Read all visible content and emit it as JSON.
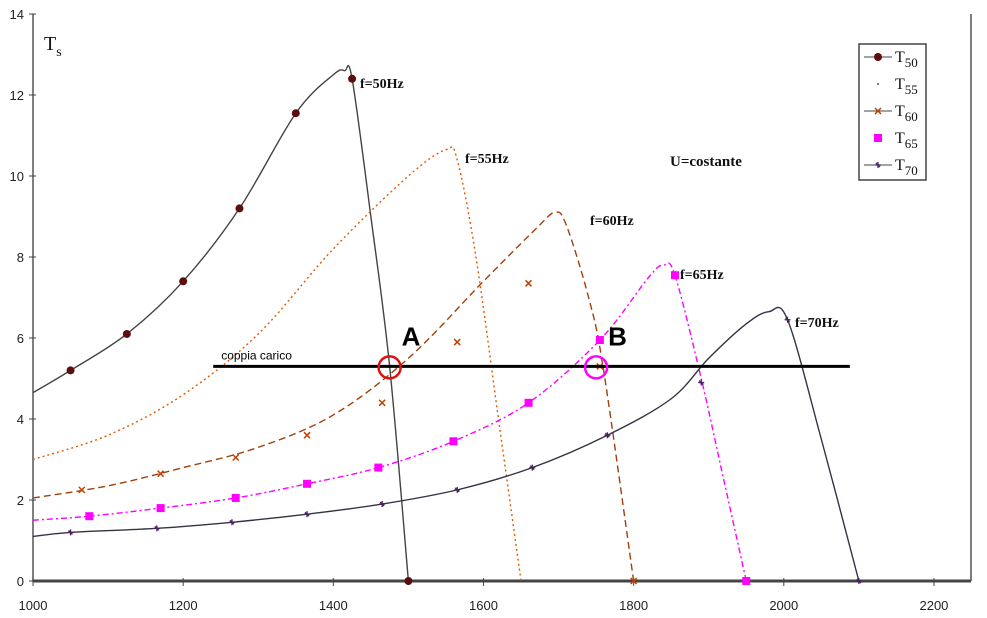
{
  "chart_data": {
    "type": "line",
    "ylabel": "T",
    "ylabel_sub": "s",
    "xlim": [
      1000,
      2200
    ],
    "ylim": [
      0,
      14
    ],
    "xticks": [
      1000,
      1200,
      1400,
      1600,
      1800,
      2000,
      2200
    ],
    "yticks": [
      0,
      2,
      4,
      6,
      8,
      10,
      12,
      14
    ],
    "legend_position": "top-right",
    "annotation": "U=costante",
    "series": [
      {
        "name": "T",
        "sub": "50",
        "label": "f=50Hz",
        "color": "#444444",
        "marker": "circle",
        "marker_color": "#5a0e0e",
        "dash": "",
        "points": [
          [
            1000,
            4.65
          ],
          [
            1050,
            5.2
          ],
          [
            1125,
            6.1
          ],
          [
            1200,
            7.4
          ],
          [
            1275,
            9.2
          ],
          [
            1350,
            11.55
          ],
          [
            1400,
            12.5
          ],
          [
            1415,
            12.6
          ],
          [
            1425,
            12.4
          ],
          [
            1450,
            9
          ],
          [
            1475,
            5.3
          ],
          [
            1500,
            0
          ]
        ],
        "markers": [
          [
            1050,
            5.2
          ],
          [
            1125,
            6.1
          ],
          [
            1200,
            7.4
          ],
          [
            1275,
            9.2
          ],
          [
            1350,
            11.55
          ],
          [
            1425,
            12.4
          ],
          [
            1500,
            0
          ]
        ]
      },
      {
        "name": "T",
        "sub": "55",
        "label": "f=55Hz",
        "color": "#e05a00",
        "marker": "dot",
        "marker_color": "#555555",
        "dash": "2,3",
        "points": [
          [
            1000,
            3.0
          ],
          [
            1100,
            3.6
          ],
          [
            1200,
            4.6
          ],
          [
            1300,
            6.1
          ],
          [
            1400,
            8.2
          ],
          [
            1500,
            10.0
          ],
          [
            1550,
            10.65
          ],
          [
            1565,
            10.4
          ],
          [
            1590,
            8
          ],
          [
            1620,
            4
          ],
          [
            1650,
            0
          ]
        ],
        "markers": []
      },
      {
        "name": "T",
        "sub": "60",
        "label": "f=60Hz",
        "color": "#a0400a",
        "marker": "cross",
        "marker_color": "#c04000",
        "dash": "7,4",
        "points": [
          [
            1000,
            2.05
          ],
          [
            1100,
            2.35
          ],
          [
            1200,
            2.8
          ],
          [
            1300,
            3.3
          ],
          [
            1400,
            4.1
          ],
          [
            1500,
            5.5
          ],
          [
            1600,
            7.4
          ],
          [
            1670,
            8.7
          ],
          [
            1695,
            9.1
          ],
          [
            1710,
            8.8
          ],
          [
            1740,
            7
          ],
          [
            1760,
            5.2
          ],
          [
            1800,
            0
          ]
        ],
        "markers": [
          [
            1065,
            2.25
          ],
          [
            1170,
            2.65
          ],
          [
            1270,
            3.05
          ],
          [
            1365,
            3.6
          ],
          [
            1465,
            4.4
          ],
          [
            1565,
            5.9
          ],
          [
            1660,
            7.35
          ],
          [
            1755,
            5.3
          ],
          [
            1800,
            0
          ]
        ]
      },
      {
        "name": "T",
        "sub": "65",
        "label": "f=65Hz",
        "color": "#ff00ff",
        "marker": "square",
        "marker_color": "#ff00ff",
        "dash": "6,3,2,3",
        "points": [
          [
            1000,
            1.5
          ],
          [
            1075,
            1.6
          ],
          [
            1170,
            1.8
          ],
          [
            1270,
            2.05
          ],
          [
            1365,
            2.4
          ],
          [
            1460,
            2.8
          ],
          [
            1560,
            3.45
          ],
          [
            1660,
            4.4
          ],
          [
            1755,
            5.95
          ],
          [
            1820,
            7.5
          ],
          [
            1840,
            7.8
          ],
          [
            1855,
            7.55
          ],
          [
            1890,
            5
          ],
          [
            1920,
            2.5
          ],
          [
            1950,
            0
          ]
        ],
        "markers": [
          [
            1075,
            1.6
          ],
          [
            1170,
            1.8
          ],
          [
            1270,
            2.05
          ],
          [
            1365,
            2.4
          ],
          [
            1460,
            2.8
          ],
          [
            1560,
            3.45
          ],
          [
            1660,
            4.4
          ],
          [
            1755,
            5.95
          ],
          [
            1855,
            7.55
          ],
          [
            1950,
            0
          ]
        ]
      },
      {
        "name": "T",
        "sub": "70",
        "label": "f=70Hz",
        "color": "#333344",
        "marker": "star",
        "marker_color": "#4a2060",
        "dash": "",
        "points": [
          [
            1000,
            1.1
          ],
          [
            1050,
            1.2
          ],
          [
            1165,
            1.3
          ],
          [
            1265,
            1.45
          ],
          [
            1365,
            1.65
          ],
          [
            1465,
            1.9
          ],
          [
            1565,
            2.25
          ],
          [
            1665,
            2.8
          ],
          [
            1765,
            3.6
          ],
          [
            1850,
            4.5
          ],
          [
            1900,
            5.5
          ],
          [
            1950,
            6.35
          ],
          [
            1980,
            6.65
          ],
          [
            2005,
            6.45
          ],
          [
            2050,
            3.5
          ],
          [
            2100,
            0
          ]
        ],
        "markers": [
          [
            1050,
            1.2
          ],
          [
            1165,
            1.3
          ],
          [
            1265,
            1.45
          ],
          [
            1365,
            1.65
          ],
          [
            1465,
            1.9
          ],
          [
            1565,
            2.25
          ],
          [
            1665,
            2.8
          ],
          [
            1765,
            3.6
          ],
          [
            1890,
            4.9
          ],
          [
            2005,
            6.45
          ],
          [
            2100,
            0
          ]
        ]
      }
    ],
    "load_line": {
      "label": "coppia carico",
      "x": [
        1240,
        2088
      ],
      "y": 5.3
    },
    "points_of_interest": [
      {
        "label": "A",
        "x": 1475,
        "y": 5.3,
        "color": "#e01010"
      },
      {
        "label": "B",
        "x": 1750,
        "y": 5.3,
        "color": "#ff00ff"
      }
    ]
  }
}
